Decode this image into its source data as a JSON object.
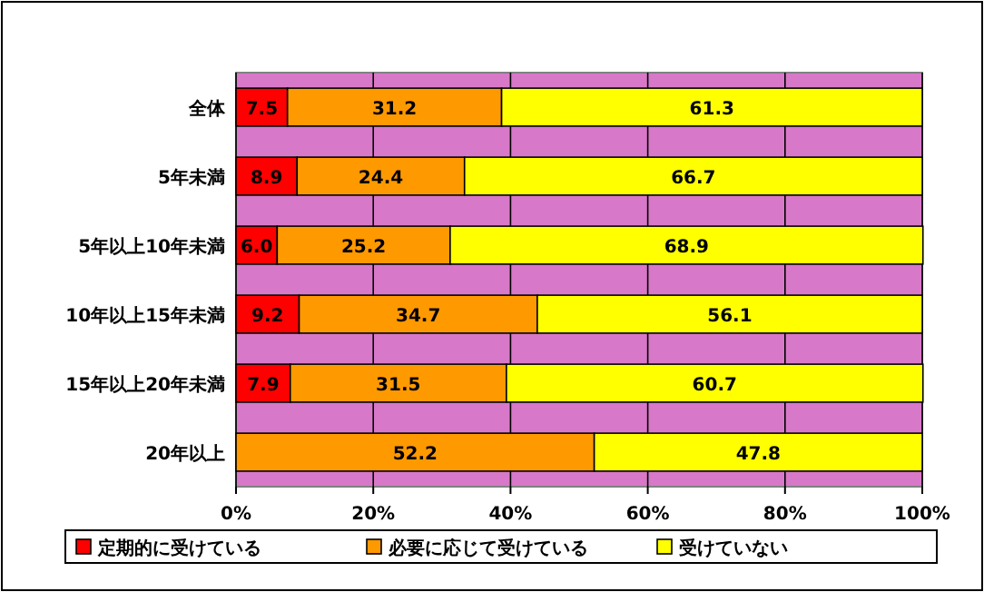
{
  "chart_data": {
    "type": "bar",
    "orientation": "horizontal",
    "stacked": true,
    "categories": [
      "全体",
      "5年未満",
      "5年以上10年未満",
      "10年以上15年未満",
      "15年以上20年未満",
      "20年以上"
    ],
    "series": [
      {
        "name": "定期的に受けている",
        "color": "#ff0000",
        "values": [
          7.5,
          8.9,
          6.0,
          9.2,
          7.9,
          null
        ],
        "value_labels": [
          "7.5",
          "8.9",
          "6.0",
          "9.2",
          "7.9",
          null
        ]
      },
      {
        "name": "必要に応じて受けている",
        "color": "#ff9900",
        "values": [
          31.2,
          24.4,
          25.2,
          34.7,
          31.5,
          52.2
        ],
        "value_labels": [
          "31.2",
          "24.4",
          "25.2",
          "34.7",
          "31.5",
          "52.2"
        ]
      },
      {
        "name": "受けていない",
        "color": "#ffff00",
        "values": [
          61.3,
          66.7,
          68.9,
          56.1,
          60.7,
          47.8
        ],
        "value_labels": [
          "61.3",
          "66.7",
          "68.9",
          "56.1",
          "60.7",
          "47.8"
        ]
      }
    ],
    "xlim": [
      0,
      100
    ],
    "xticks": [
      {
        "value": 0,
        "label": "0%"
      },
      {
        "value": 20,
        "label": "20%"
      },
      {
        "value": 40,
        "label": "40%"
      },
      {
        "value": 60,
        "label": "60%"
      },
      {
        "value": 80,
        "label": "80%"
      },
      {
        "value": 100,
        "label": "100%"
      }
    ],
    "grid": "x",
    "legend": "bottom"
  }
}
